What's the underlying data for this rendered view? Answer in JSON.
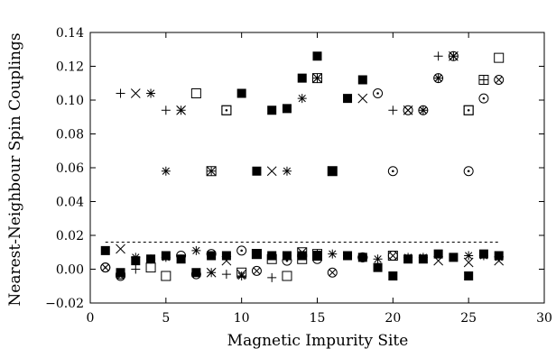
{
  "chart_data": {
    "type": "scatter",
    "title": "",
    "xlabel": "Magnetic Impurity Site",
    "ylabel": "Nearest-Neighbour Spin Couplings",
    "xlim": [
      0,
      30
    ],
    "ylim": [
      -0.02,
      0.14
    ],
    "xticks": [
      0,
      5,
      10,
      15,
      20,
      25,
      30
    ],
    "yticks": [
      -0.02,
      0.0,
      0.02,
      0.04,
      0.06,
      0.08,
      0.1,
      0.12,
      0.14
    ],
    "xtick_labels": [
      "0",
      "5",
      "10",
      "15",
      "20",
      "25",
      "30"
    ],
    "ytick_labels": [
      "−0.02",
      "0.00",
      "0.02",
      "0.04",
      "0.06",
      "0.08",
      "0.10",
      "0.12",
      "0.14"
    ],
    "reference_line": {
      "y": 0.016,
      "x_range": [
        1,
        27
      ],
      "style": "dashed"
    },
    "grid": false,
    "legend": "none",
    "series": [
      {
        "marker": "plus",
        "points": [
          [
            2,
            0.104
          ],
          [
            5,
            0.094
          ],
          [
            20,
            0.094
          ],
          [
            23,
            0.126
          ],
          [
            3,
            0.0
          ],
          [
            12,
            -0.005
          ],
          [
            9,
            -0.003
          ]
        ]
      },
      {
        "marker": "cross",
        "points": [
          [
            2,
            0.012
          ],
          [
            3,
            0.104
          ],
          [
            6,
            0.094
          ],
          [
            8,
            0.058
          ],
          [
            12,
            0.058
          ],
          [
            18,
            0.101
          ],
          [
            21,
            0.094
          ],
          [
            24,
            0.126
          ],
          [
            9,
            0.005
          ],
          [
            11,
            0.009
          ],
          [
            23,
            0.005
          ],
          [
            25,
            0.004
          ],
          [
            27,
            0.005
          ],
          [
            8,
            -0.002
          ],
          [
            10,
            -0.003
          ]
        ]
      },
      {
        "marker": "asterisk",
        "points": [
          [
            4,
            0.104
          ],
          [
            5,
            0.058
          ],
          [
            6,
            0.094
          ],
          [
            13,
            0.058
          ],
          [
            14,
            0.101
          ],
          [
            15,
            0.113
          ],
          [
            22,
            0.094
          ],
          [
            23,
            0.113
          ],
          [
            24,
            0.126
          ],
          [
            7,
            0.011
          ],
          [
            13,
            0.008
          ],
          [
            14,
            0.008
          ],
          [
            16,
            0.009
          ],
          [
            17,
            0.008
          ],
          [
            19,
            0.006
          ],
          [
            21,
            0.007
          ],
          [
            22,
            0.007
          ],
          [
            25,
            0.008
          ],
          [
            26,
            0.008
          ],
          [
            27,
            0.007
          ],
          [
            3,
            0.007
          ],
          [
            4,
            0.006
          ],
          [
            5,
            0.007
          ],
          [
            8,
            -0.002
          ],
          [
            10,
            -0.004
          ]
        ]
      },
      {
        "marker": "square-open",
        "points": [
          [
            7,
            0.104
          ],
          [
            9,
            0.094
          ],
          [
            25,
            0.094
          ],
          [
            27,
            0.125
          ],
          [
            10,
            -0.002
          ],
          [
            13,
            -0.004
          ],
          [
            4,
            0.001
          ],
          [
            5,
            -0.004
          ],
          [
            12,
            0.006
          ],
          [
            14,
            0.006
          ],
          [
            15,
            0.008
          ],
          [
            20,
            0.008
          ]
        ]
      },
      {
        "marker": "square-dot",
        "points": [
          [
            9,
            0.094
          ],
          [
            25,
            0.094
          ]
        ]
      },
      {
        "marker": "square-filled",
        "points": [
          [
            10,
            0.104
          ],
          [
            11,
            0.058
          ],
          [
            12,
            0.094
          ],
          [
            13,
            0.095
          ],
          [
            14,
            0.113
          ],
          [
            15,
            0.126
          ],
          [
            16,
            0.058
          ],
          [
            17,
            0.101
          ],
          [
            18,
            0.112
          ],
          [
            1,
            0.011
          ],
          [
            2,
            -0.002
          ],
          [
            3,
            0.005
          ],
          [
            4,
            0.006
          ],
          [
            5,
            0.008
          ],
          [
            6,
            0.006
          ],
          [
            7,
            -0.002
          ],
          [
            8,
            0.008
          ],
          [
            9,
            0.008
          ],
          [
            11,
            0.009
          ],
          [
            12,
            0.008
          ],
          [
            13,
            0.008
          ],
          [
            14,
            0.008
          ],
          [
            15,
            0.008
          ],
          [
            17,
            0.008
          ],
          [
            18,
            0.007
          ],
          [
            19,
            0.001
          ],
          [
            20,
            -0.004
          ],
          [
            21,
            0.006
          ],
          [
            22,
            0.006
          ],
          [
            23,
            0.009
          ],
          [
            24,
            0.007
          ],
          [
            25,
            -0.004
          ],
          [
            26,
            0.009
          ],
          [
            27,
            0.008
          ]
        ]
      },
      {
        "marker": "circle-dot",
        "points": [
          [
            19,
            0.104
          ],
          [
            20,
            0.058
          ],
          [
            25,
            0.058
          ],
          [
            26,
            0.101
          ],
          [
            10,
            0.011
          ],
          [
            13,
            0.005
          ],
          [
            15,
            0.006
          ],
          [
            18,
            0.007
          ],
          [
            1,
            0.001
          ],
          [
            2,
            -0.003
          ],
          [
            6,
            0.008
          ],
          [
            8,
            0.009
          ]
        ]
      },
      {
        "marker": "circle-cross",
        "points": [
          [
            21,
            0.094
          ],
          [
            22,
            0.094
          ],
          [
            23,
            0.113
          ],
          [
            24,
            0.126
          ],
          [
            27,
            0.112
          ],
          [
            1,
            0.001
          ],
          [
            2,
            -0.004
          ],
          [
            7,
            -0.003
          ],
          [
            11,
            -0.001
          ],
          [
            16,
            -0.002
          ],
          [
            18,
            0.007
          ],
          [
            20,
            0.008
          ]
        ]
      },
      {
        "marker": "square-plus",
        "points": [
          [
            8,
            0.058
          ],
          [
            26,
            0.112
          ],
          [
            11,
            0.009
          ],
          [
            15,
            0.009
          ]
        ]
      },
      {
        "marker": "square-cross",
        "points": [
          [
            15,
            0.113
          ],
          [
            16,
            0.058
          ],
          [
            11,
            0.009
          ],
          [
            14,
            0.01
          ]
        ]
      }
    ]
  }
}
